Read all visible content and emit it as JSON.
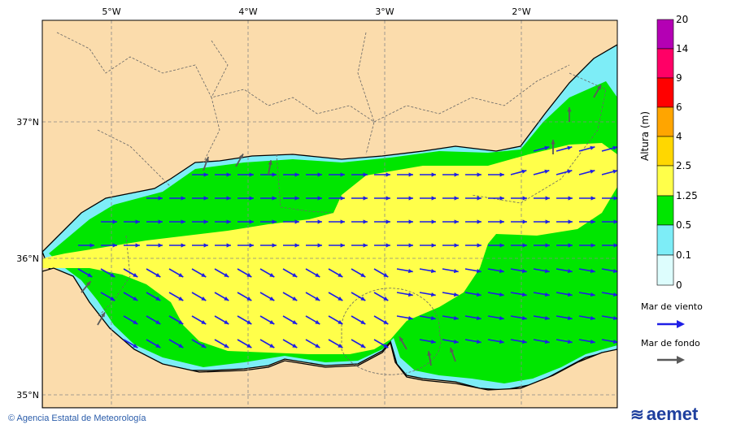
{
  "map": {
    "lon_ticks": [
      "5°W",
      "4°W",
      "3°W",
      "2°W"
    ],
    "lat_ticks": [
      "37°N",
      "36°N",
      "35°N"
    ],
    "colors": {
      "land": "#fbdcac",
      "h0_0.1": "#ddfdfd",
      "h0.1_0.5": "#7dedf7",
      "h0.5_1.25": "#00e600",
      "h1.25_2.5": "#ffff4a",
      "h2.5_4": "#ffd700",
      "h4_6": "#ffa500",
      "h6_9": "#ff0000",
      "h9_14": "#ff0066",
      "h14_20": "#b400b4",
      "wind_sea_arrow": "#1e1ee6",
      "swell_arrow": "#5a5a5a"
    }
  },
  "legend": {
    "title": "Altura (m)",
    "levels": [
      "20",
      "14",
      "9",
      "6",
      "4",
      "2.5",
      "1.25",
      "0.5",
      "0.1",
      "0"
    ],
    "wind_sea_label": "Mar de viento",
    "swell_label": "Mar de fondo"
  },
  "footer": {
    "credit": "© Agencia Estatal de Meteorología",
    "logo_text": "aemet"
  }
}
